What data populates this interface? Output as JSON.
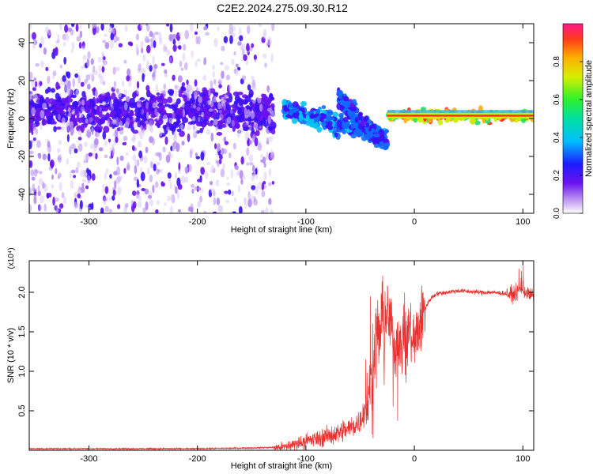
{
  "figure": {
    "title": "C2E2.2024.275.09.30.R12"
  },
  "chart_data": [
    {
      "type": "heatmap",
      "xlabel": "Height of straight line (km)",
      "ylabel": "Frequency (Hz)",
      "xlim": [
        -355,
        110
      ],
      "ylim": [
        -50,
        50
      ],
      "xticks": [
        -300,
        -200,
        -100,
        0,
        100
      ],
      "yticks": [
        -40,
        -20,
        0,
        20,
        40
      ],
      "xtick_labels": [
        "-300",
        "-200",
        "-100",
        "0",
        "100"
      ],
      "ytick_labels": [
        "-40",
        "-20",
        "0",
        "20",
        "40"
      ],
      "grid": false,
      "colorbar": {
        "label": "Normalized spectral amplitude",
        "range": [
          0,
          1
        ],
        "ticks": [
          0.0,
          0.2,
          0.4,
          0.6,
          0.8
        ],
        "tick_labels": [
          "0.0",
          "0.2",
          "0.4",
          "0.6",
          "0.8"
        ],
        "colormap": "rainbow"
      },
      "features": [
        {
          "x_range": [
            -355,
            -130
          ],
          "y_center": 4,
          "y_spread": 5,
          "amplitude": 0.25,
          "desc": "noisy tone band"
        },
        {
          "x_range": [
            -120,
            -25
          ],
          "y_start": 5,
          "y_end": -10,
          "amplitude": 0.4,
          "desc": "descending branch"
        },
        {
          "x_range": [
            -70,
            -25
          ],
          "y_start": 12,
          "y_end": -15,
          "amplitude": 0.35,
          "desc": "second descending branch"
        },
        {
          "x_range": [
            -25,
            110
          ],
          "y_center": 1.5,
          "y_spread": 1.5,
          "amplitude": 0.9,
          "desc": "stable carrier"
        }
      ]
    },
    {
      "type": "line",
      "xlabel": "Height of straight line (km)",
      "ylabel": "SNR (10 * v/v)",
      "y_multiplier": "(x10⁴)",
      "xlim": [
        -355,
        110
      ],
      "ylim": [
        0,
        2.4
      ],
      "xticks": [
        -300,
        -200,
        -100,
        0,
        100
      ],
      "yticks": [
        0.5,
        1.0,
        1.5,
        2.0
      ],
      "xtick_labels": [
        "-300",
        "-200",
        "-100",
        "0",
        "100"
      ],
      "ytick_labels": [
        "0.5",
        "1.0",
        "1.5",
        "2.0"
      ],
      "grid": false,
      "series": [
        {
          "color": "#e8302e",
          "x": [
            -355,
            -300,
            -250,
            -200,
            -150,
            -120,
            -110,
            -100,
            -90,
            -80,
            -70,
            -60,
            -50,
            -45,
            -40,
            -37,
            -35,
            -32,
            -30,
            -28,
            -25,
            -22,
            -20,
            -18,
            -15,
            -12,
            -10,
            -8,
            -5,
            -2,
            0,
            5,
            10,
            15,
            20,
            30,
            40,
            50,
            60,
            70,
            80,
            90,
            95,
            100,
            103,
            106,
            110
          ],
          "y": [
            0.02,
            0.02,
            0.02,
            0.02,
            0.03,
            0.04,
            0.08,
            0.12,
            0.14,
            0.18,
            0.22,
            0.28,
            0.36,
            0.55,
            0.85,
            1.2,
            1.6,
            1.4,
            1.8,
            1.5,
            1.75,
            1.6,
            1.4,
            1.3,
            1.5,
            1.15,
            1.7,
            1.2,
            1.6,
            1.4,
            1.35,
            1.6,
            1.8,
            1.92,
            1.98,
            2.0,
            2.02,
            2.01,
            2.0,
            2.0,
            1.99,
            1.97,
            2.0,
            2.05,
            2.0,
            1.96,
            1.97
          ]
        }
      ]
    }
  ],
  "colors": {
    "line": "#e8302e",
    "axis": "#000000",
    "background": "#ffffff"
  }
}
